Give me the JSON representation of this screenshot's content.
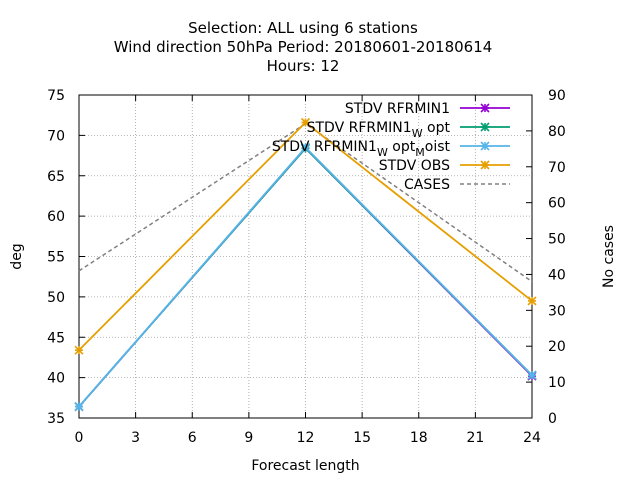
{
  "chart_data": {
    "type": "line",
    "title_lines": [
      "Selection: ALL using     6 stations",
      "Wind direction 50hPa   Period: 20180601-20180614",
      "Hours:  12"
    ],
    "xlabel": "Forecast length",
    "ylabel": "deg",
    "y2label": "No cases",
    "x": [
      0,
      12,
      24
    ],
    "xticks": [
      0,
      3,
      6,
      9,
      12,
      15,
      18,
      21,
      24
    ],
    "xlim": [
      0,
      24
    ],
    "ylim": [
      35,
      75
    ],
    "yticks": [
      35,
      40,
      45,
      50,
      55,
      60,
      65,
      70,
      75
    ],
    "y2lim": [
      0,
      90
    ],
    "y2ticks": [
      0,
      10,
      20,
      30,
      40,
      50,
      60,
      70,
      80,
      90
    ],
    "grid": true,
    "legend_position": "top-right",
    "series": [
      {
        "name": "STDV RFRMIN1",
        "name_main": "STDV RFRMIN1",
        "name_sub": "",
        "name_tail": "",
        "name_sub2": "",
        "name_tail2": "",
        "values": [
          36.4,
          68.4,
          40.2
        ],
        "color": "#9400d3",
        "marker": "x-star",
        "dash": false,
        "axis": "y"
      },
      {
        "name": "STDV RFRMIN1_W opt",
        "name_main": "STDV RFRMIN1",
        "name_sub": "W",
        "name_tail": " opt",
        "name_sub2": "",
        "name_tail2": "",
        "values": [
          36.4,
          68.4,
          40.3
        ],
        "color": "#009e73",
        "marker": "x-star",
        "dash": false,
        "axis": "y"
      },
      {
        "name": "STDV RFRMIN1_W opt_M oist",
        "name_main": "STDV RFRMIN1",
        "name_sub": "W",
        "name_tail": " opt",
        "name_sub2": "M",
        "name_tail2": "oist",
        "values": [
          36.4,
          68.5,
          40.3
        ],
        "color": "#56b4e9",
        "marker": "x-star",
        "dash": false,
        "axis": "y"
      },
      {
        "name": "STDV OBS",
        "name_main": "STDV OBS",
        "name_sub": "",
        "name_tail": "",
        "name_sub2": "",
        "name_tail2": "",
        "values": [
          43.4,
          71.6,
          49.5
        ],
        "color": "#e69f00",
        "marker": "x-star",
        "dash": false,
        "axis": "y"
      },
      {
        "name": "CASES",
        "name_main": "CASES",
        "name_sub": "",
        "name_tail": "",
        "name_sub2": "",
        "name_tail2": "",
        "values": [
          41,
          82,
          38
        ],
        "color": "#808080",
        "marker": "none",
        "dash": true,
        "axis": "y2"
      }
    ]
  }
}
